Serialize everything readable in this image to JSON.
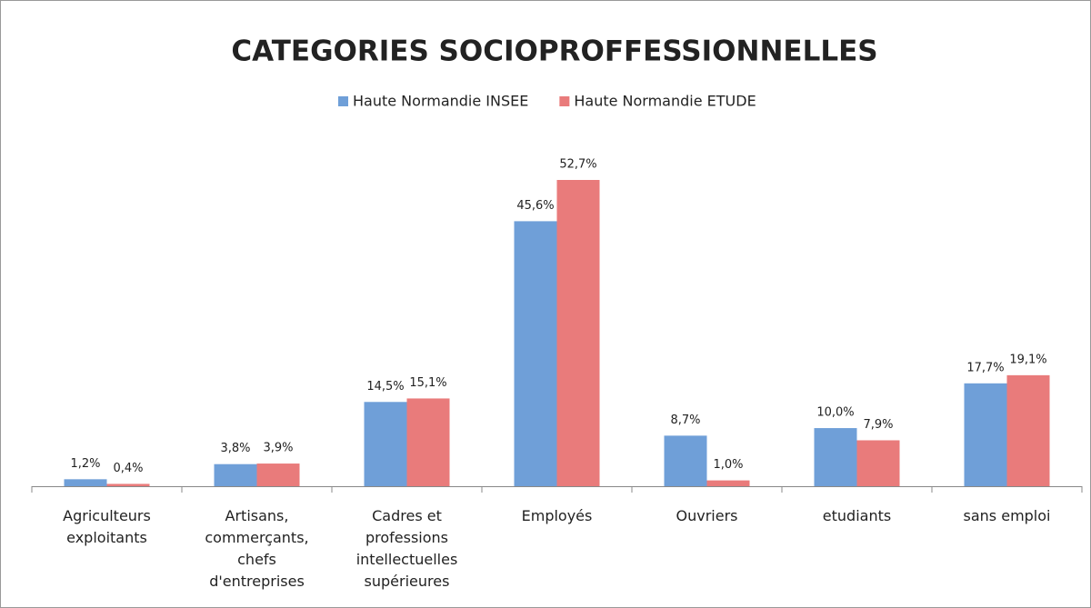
{
  "chart_data": {
    "type": "bar",
    "title": "CATEGORIES SOCIOPROFFESSIONNELLES",
    "categories": [
      "Agriculteurs exploitants",
      "Artisans, commerçants, chefs d'entreprises",
      "Cadres et professions intellectuelles supérieures",
      "Employés",
      "Ouvriers",
      "etudiants",
      "sans emploi"
    ],
    "series": [
      {
        "name": "Haute Normandie INSEE",
        "color": "#6f9fd8",
        "values": [
          1.2,
          3.8,
          14.5,
          45.6,
          8.7,
          10.0,
          17.7
        ],
        "value_labels": [
          "1,2%",
          "3,8%",
          "14,5%",
          "45,6%",
          "8,7%",
          "10,0%",
          "17,7%"
        ]
      },
      {
        "name": "Haute Normandie ETUDE",
        "color": "#e97b7b",
        "values": [
          0.4,
          3.9,
          15.1,
          52.7,
          1.0,
          7.9,
          19.1
        ],
        "value_labels": [
          "0,4%",
          "3,9%",
          "15,1%",
          "52,7%",
          "1,0%",
          "7,9%",
          "19,1%"
        ]
      }
    ],
    "legend": "top"
  }
}
